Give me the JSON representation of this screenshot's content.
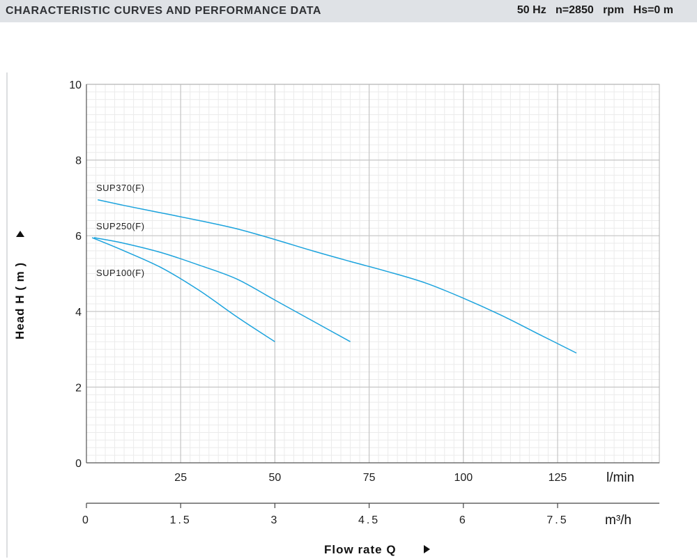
{
  "header": {
    "title": "CHARACTERISTIC CURVES AND PERFORMANCE DATA",
    "conditions": "50 Hz   n=2850   rpm   Hs=0 m"
  },
  "chart_data": {
    "type": "line",
    "ylabel": "Head H ( m )",
    "xlabel": "Flow rate Q",
    "x_unit": "l/min",
    "x2_unit": "m³/h",
    "xlim": [
      0,
      152
    ],
    "ylim": [
      0,
      10
    ],
    "y_ticks": [
      "0",
      "2",
      "4",
      "6",
      "8",
      "10"
    ],
    "x_ticks": [
      "25",
      "50",
      "75",
      "100",
      "125"
    ],
    "x2_ticks": [
      "0",
      "1.5",
      "3",
      "4.5",
      "6",
      "7.5"
    ],
    "grid": true,
    "series": [
      {
        "name": "SUP370(F)",
        "x": [
          3,
          10,
          20,
          30,
          40,
          50,
          60,
          70,
          80,
          90,
          100,
          110,
          120,
          130
        ],
        "y": [
          6.95,
          6.8,
          6.6,
          6.4,
          6.18,
          5.9,
          5.6,
          5.32,
          5.05,
          4.75,
          4.35,
          3.9,
          3.4,
          2.9
        ]
      },
      {
        "name": "SUP250(F)",
        "x": [
          2,
          10,
          20,
          30,
          40,
          50,
          60,
          70
        ],
        "y": [
          5.95,
          5.8,
          5.55,
          5.22,
          4.85,
          4.3,
          3.75,
          3.2
        ]
      },
      {
        "name": "SUP100(F)",
        "x": [
          1.5,
          10,
          20,
          30,
          40,
          50
        ],
        "y": [
          5.95,
          5.6,
          5.15,
          4.55,
          3.85,
          3.2
        ]
      }
    ]
  }
}
